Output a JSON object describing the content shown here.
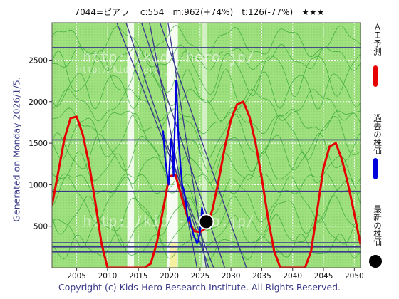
{
  "header": {
    "code_name": "7044=ピアラ",
    "current": "c:554",
    "max": "m:962(+74%)",
    "target": "t:126(-77%)",
    "rating": "★★★"
  },
  "side_label": "Generated on Monday 2026/1/5.",
  "copyright": "Copyright (c) Kids-Hero Research Institute. All Rights Reserved.",
  "watermark": "http://kids-hero.jp/",
  "legend": [
    {
      "label": "ＡＩ予測",
      "color": "#e60000",
      "kind": "line"
    },
    {
      "label": "過去の株価",
      "color": "#0000dd",
      "kind": "line"
    },
    {
      "label": "最新の株価",
      "color": "#000000",
      "kind": "dot"
    }
  ],
  "chart_data": {
    "type": "line",
    "x_ticks": [
      "2005",
      "2010",
      "2015",
      "2020",
      "2025",
      "2030",
      "2035",
      "2040",
      "2045",
      "2050"
    ],
    "y_ticks": [
      "500",
      "1000",
      "1500",
      "2000",
      "2500"
    ],
    "xlim": [
      2001,
      2051
    ],
    "ylim": [
      0,
      2950
    ],
    "grid": true,
    "horizontal_levels": [
      2650,
      1540,
      920,
      300,
      250,
      190
    ],
    "series": [
      {
        "name": "ＡＩ予測",
        "color": "#e60000",
        "x": [
          2001,
          2002,
          2003,
          2004,
          2005,
          2006,
          2007,
          2008,
          2009,
          2010,
          2011,
          2012,
          2013,
          2014,
          2015,
          2016,
          2017,
          2018,
          2019,
          2020,
          2021,
          2022,
          2023,
          2024,
          2025,
          2026,
          2027,
          2028,
          2029,
          2030,
          2031,
          2032,
          2033,
          2034,
          2035,
          2036,
          2037,
          2038,
          2039,
          2040,
          2041,
          2042,
          2043,
          2044,
          2045,
          2046,
          2047,
          2048,
          2049,
          2050,
          2051
        ],
        "y": [
          750,
          1150,
          1550,
          1800,
          1820,
          1600,
          1250,
          800,
          300,
          0,
          0,
          0,
          0,
          0,
          0,
          0,
          50,
          300,
          700,
          1100,
          1120,
          850,
          600,
          440,
          430,
          480,
          700,
          1050,
          1450,
          1780,
          1970,
          2000,
          1820,
          1500,
          1080,
          600,
          200,
          0,
          0,
          0,
          0,
          0,
          200,
          700,
          1200,
          1460,
          1500,
          1300,
          1000,
          650,
          280
        ]
      },
      {
        "name": "過去の株価",
        "color": "#0000dd",
        "x": [
          2019.0,
          2019.3,
          2019.6,
          2019.9,
          2020.1,
          2020.3,
          2020.5,
          2020.7,
          2020.9,
          2021.1,
          2021.3,
          2021.5,
          2021.7,
          2021.9,
          2022.1,
          2022.3,
          2022.5,
          2022.7,
          2022.9,
          2023.1,
          2023.3,
          2023.5,
          2023.7,
          2023.9,
          2024.1,
          2024.3,
          2024.5,
          2024.7,
          2024.9,
          2025.1,
          2025.3,
          2025.5,
          2025.7,
          2025.9,
          2026.0
        ],
        "y": [
          1650,
          1350,
          1150,
          1000,
          1300,
          1550,
          1450,
          1100,
          1700,
          2250,
          1950,
          1550,
          1350,
          1150,
          1000,
          950,
          880,
          780,
          640,
          560,
          610,
          500,
          470,
          400,
          360,
          330,
          290,
          320,
          400,
          500,
          720,
          640,
          560,
          560,
          554
        ]
      }
    ],
    "latest": {
      "x": 2026.0,
      "y": 554
    }
  }
}
